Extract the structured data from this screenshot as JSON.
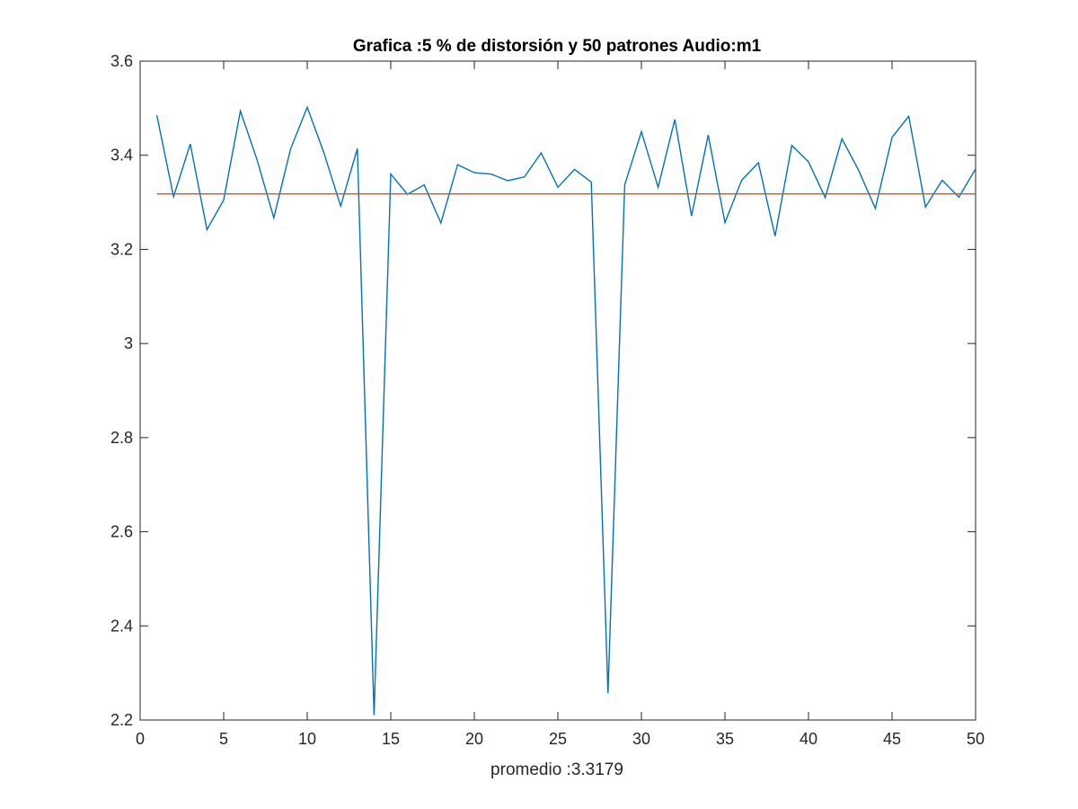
{
  "chart_data": {
    "type": "line",
    "title": "Grafica :5 % de distorsión y 50 patrones Audio:m1",
    "xlabel": "promedio :3.3179",
    "ylabel": "",
    "xlim": [
      0,
      50
    ],
    "ylim": [
      2.2,
      3.6
    ],
    "xticks": [
      0,
      5,
      10,
      15,
      20,
      25,
      30,
      35,
      40,
      45,
      50
    ],
    "yticks": [
      2.2,
      2.4,
      2.6,
      2.8,
      3,
      3.2,
      3.4,
      3.6
    ],
    "grid": false,
    "series": [
      {
        "color": "#0072BD",
        "x": [
          1,
          2,
          3,
          4,
          5,
          6,
          7,
          8,
          9,
          10,
          11,
          12,
          13,
          14,
          15,
          16,
          17,
          18,
          19,
          20,
          21,
          22,
          23,
          24,
          25,
          26,
          27,
          28,
          29,
          30,
          31,
          32,
          33,
          34,
          35,
          36,
          37,
          38,
          39,
          40,
          41,
          42,
          43,
          44,
          45,
          46,
          47,
          48,
          49,
          50
        ],
        "y": [
          3.485,
          3.312,
          3.424,
          3.242,
          3.305,
          3.494,
          3.39,
          3.267,
          3.413,
          3.502,
          3.405,
          3.292,
          3.414,
          2.21,
          3.36,
          3.317,
          3.337,
          3.256,
          3.38,
          3.363,
          3.36,
          3.346,
          3.354,
          3.405,
          3.332,
          3.37,
          3.343,
          2.257,
          3.337,
          3.45,
          3.332,
          3.476,
          3.271,
          3.443,
          3.257,
          3.347,
          3.384,
          3.228,
          3.421,
          3.386,
          3.31,
          3.435,
          3.368,
          3.287,
          3.438,
          3.483,
          3.29,
          3.347,
          3.311,
          3.371
        ]
      },
      {
        "color": "#D95319",
        "x": [
          1,
          50
        ],
        "y": [
          3.3179,
          3.3179
        ]
      }
    ]
  }
}
